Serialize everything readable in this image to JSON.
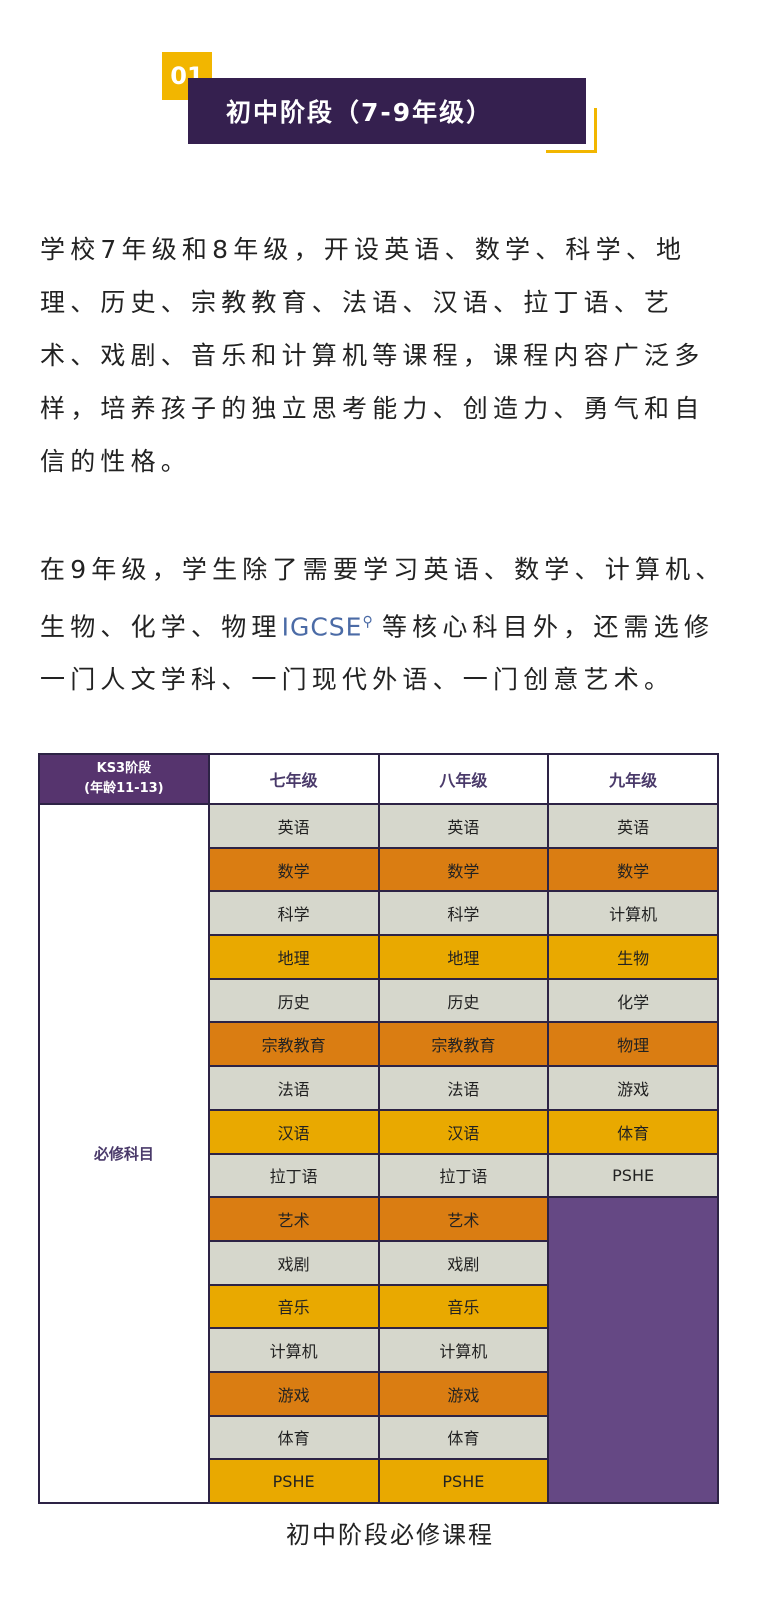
{
  "section": {
    "number": "01",
    "title": "初中阶段（7-9年级）"
  },
  "paragraph1": "学校7年级和8年级，开设英语、数学、科学、地理、历史、宗教教育、法语、汉语、拉丁语、艺术、戏剧、音乐和计算机等课程，课程内容广泛多样，培养孩子的独立思考能力、创造力、勇气和自信的性格。",
  "paragraph2": {
    "before": "在9年级，学生除了需要学习英语、数学、计算机、生物、化学、物理",
    "link": "IGCSE",
    "after": "等核心科目外，还需选修一门人文学科、一门现代外语、一门创意艺术。"
  },
  "table": {
    "corner_line1": "KS3阶段",
    "corner_line2": "(年龄11-13)",
    "headers": [
      "七年级",
      "八年级",
      "九年级"
    ],
    "row_label": "必修科目",
    "grade7": [
      "英语",
      "数学",
      "科学",
      "地理",
      "历史",
      "宗教教育",
      "法语",
      "汉语",
      "拉丁语",
      "艺术",
      "戏剧",
      "音乐",
      "计算机",
      "游戏",
      "体育",
      "PSHE"
    ],
    "grade8": [
      "英语",
      "数学",
      "科学",
      "地理",
      "历史",
      "宗教教育",
      "法语",
      "汉语",
      "拉丁语",
      "艺术",
      "戏剧",
      "音乐",
      "计算机",
      "游戏",
      "体育",
      "PSHE"
    ],
    "grade9": [
      "英语",
      "数学",
      "计算机",
      "生物",
      "化学",
      "物理",
      "游戏",
      "体育",
      "PSHE"
    ],
    "row_colors": [
      "#d6d7cc",
      "#da7d12",
      "#d6d7cc",
      "#e9a900"
    ],
    "empty_fill": "#654884"
  },
  "caption": "初中阶段必修课程"
}
